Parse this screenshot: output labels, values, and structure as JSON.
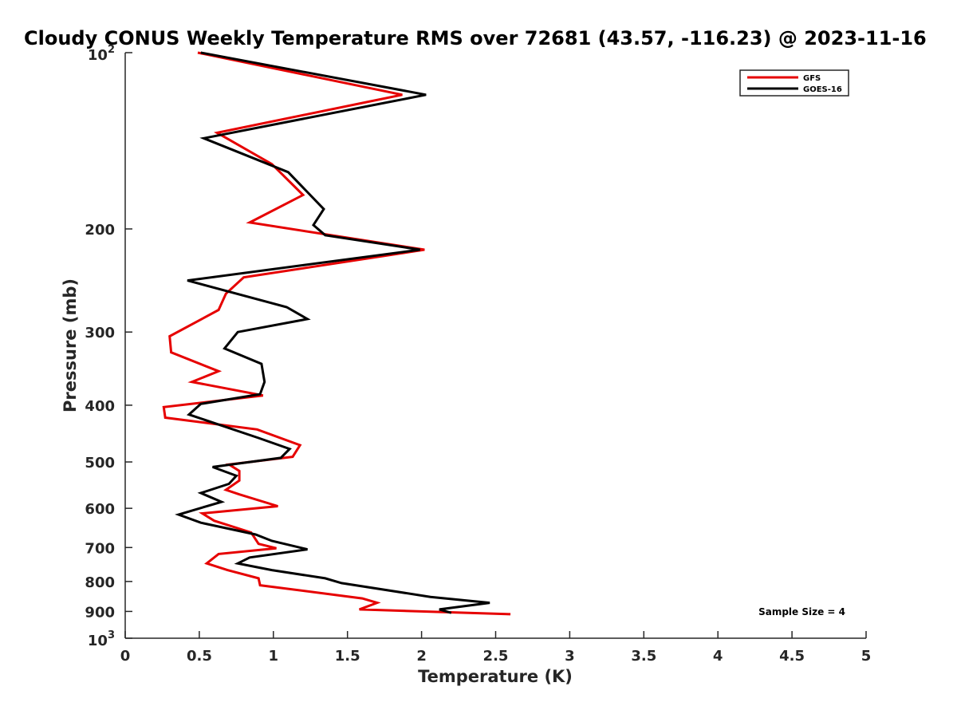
{
  "chart_data": {
    "type": "line",
    "title": "Cloudy CONUS Weekly Temperature RMS over 72681 (43.57, -116.23) @ 2023-11-16",
    "xlabel": "Temperature (K)",
    "ylabel": "Pressure (mb)",
    "xlim": [
      0,
      5
    ],
    "ylim": [
      100,
      1000
    ],
    "yscale": "log",
    "y_reversed": true,
    "grid": false,
    "legend_position": "top-right",
    "x_ticks": [
      "0",
      "0.5",
      "1",
      "1.5",
      "2",
      "2.5",
      "3",
      "3.5",
      "4",
      "4.5",
      "5"
    ],
    "x_tick_values": [
      0,
      0.5,
      1,
      1.5,
      2,
      2.5,
      3,
      3.5,
      4,
      4.5,
      5
    ],
    "y_ticks": [
      "200",
      "300",
      "400",
      "500",
      "600",
      "700",
      "800",
      "900"
    ],
    "y_tick_values": [
      200,
      300,
      400,
      500,
      600,
      700,
      800,
      900
    ],
    "y_tick_10_base": "10",
    "y_tick_exp_top": "2",
    "y_tick_exp_bottom": "3",
    "annotation": "Sample Size = 4",
    "series": [
      {
        "name": "GFS",
        "color": "#e60000",
        "points": [
          [
            0.49,
            100
          ],
          [
            1.87,
            118
          ],
          [
            0.62,
            137
          ],
          [
            0.99,
            155
          ],
          [
            1.2,
            175
          ],
          [
            0.84,
            195
          ],
          [
            2.02,
            217
          ],
          [
            0.8,
            242
          ],
          [
            0.68,
            258
          ],
          [
            0.63,
            275
          ],
          [
            0.3,
            305
          ],
          [
            0.31,
            325
          ],
          [
            0.63,
            350
          ],
          [
            0.45,
            365
          ],
          [
            0.93,
            385
          ],
          [
            0.26,
            403
          ],
          [
            0.27,
            420
          ],
          [
            0.89,
            440
          ],
          [
            1.18,
            468
          ],
          [
            1.13,
            490
          ],
          [
            0.7,
            505
          ],
          [
            0.77,
            518
          ],
          [
            0.77,
            538
          ],
          [
            0.68,
            558
          ],
          [
            0.77,
            568
          ],
          [
            1.03,
            595
          ],
          [
            0.52,
            612
          ],
          [
            0.6,
            630
          ],
          [
            0.85,
            660
          ],
          [
            0.9,
            690
          ],
          [
            1.02,
            702
          ],
          [
            0.63,
            718
          ],
          [
            0.55,
            745
          ],
          [
            0.69,
            765
          ],
          [
            0.9,
            790
          ],
          [
            0.91,
            812
          ],
          [
            1.6,
            855
          ],
          [
            1.7,
            870
          ],
          [
            1.58,
            893
          ],
          [
            2.6,
            910
          ]
        ]
      },
      {
        "name": "GOES-16",
        "color": "#000000",
        "points": [
          [
            0.51,
            100
          ],
          [
            2.03,
            118
          ],
          [
            0.53,
            140
          ],
          [
            1.1,
            160
          ],
          [
            1.34,
            185
          ],
          [
            1.27,
            197
          ],
          [
            1.35,
            205
          ],
          [
            1.99,
            217
          ],
          [
            0.42,
            245
          ],
          [
            1.09,
            272
          ],
          [
            1.23,
            285
          ],
          [
            0.76,
            300
          ],
          [
            0.67,
            320
          ],
          [
            0.92,
            340
          ],
          [
            0.94,
            365
          ],
          [
            0.91,
            383
          ],
          [
            0.51,
            398
          ],
          [
            0.43,
            415
          ],
          [
            0.9,
            455
          ],
          [
            1.11,
            475
          ],
          [
            1.05,
            492
          ],
          [
            0.59,
            510
          ],
          [
            0.75,
            528
          ],
          [
            0.7,
            545
          ],
          [
            0.51,
            565
          ],
          [
            0.65,
            585
          ],
          [
            0.36,
            615
          ],
          [
            0.51,
            635
          ],
          [
            0.88,
            665
          ],
          [
            0.99,
            682
          ],
          [
            1.23,
            705
          ],
          [
            0.84,
            728
          ],
          [
            0.76,
            745
          ],
          [
            0.99,
            765
          ],
          [
            1.35,
            790
          ],
          [
            1.46,
            805
          ],
          [
            2.06,
            850
          ],
          [
            2.46,
            870
          ],
          [
            2.12,
            893
          ],
          [
            2.2,
            905
          ]
        ]
      }
    ]
  }
}
